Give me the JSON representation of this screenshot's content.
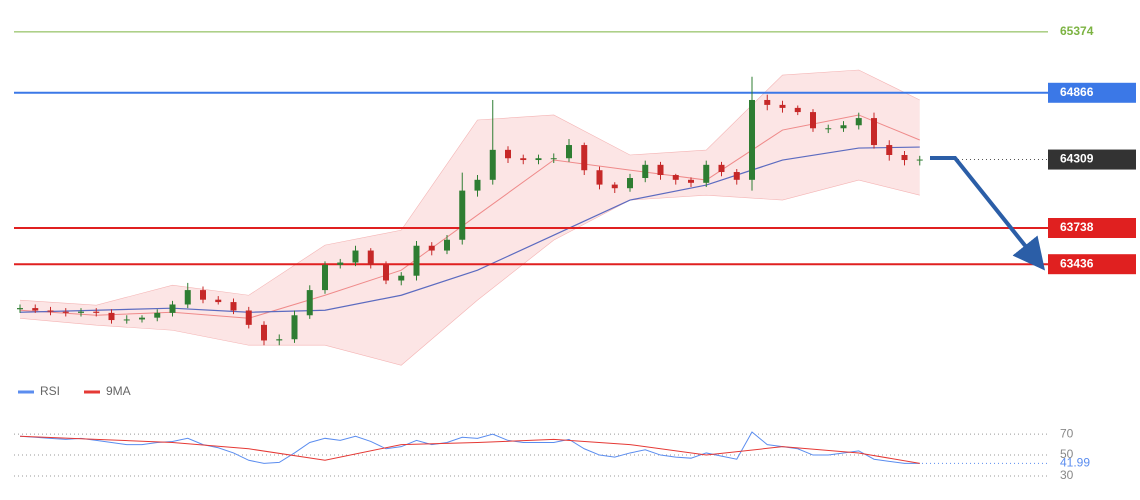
{
  "chart_data": [
    {
      "type": "candlestick",
      "ylim": [
        62470,
        65640
      ],
      "up_color": "#2e7d32",
      "down_color": "#c62828",
      "candles": {
        "open": [
          63060,
          63070,
          63050,
          63040,
          63030,
          63040,
          63030,
          62970,
          62975,
          62990,
          63030,
          63100,
          63220,
          63140,
          63120,
          63050,
          62930,
          62800,
          62810,
          63010,
          63220,
          63430,
          63450,
          63550,
          63430,
          63300,
          63340,
          63590,
          63550,
          63640,
          64050,
          64140,
          64390,
          64320,
          64305,
          64320,
          64320,
          64430,
          64220,
          64100,
          64070,
          64155,
          64265,
          64180,
          64140,
          64115,
          64265,
          64205,
          64140,
          64806,
          64765,
          64740,
          64705,
          64570,
          64570,
          64595,
          64655,
          64430,
          64347,
          64305
        ],
        "high": [
          63100,
          63100,
          63080,
          63070,
          63070,
          63070,
          63060,
          63010,
          63010,
          63060,
          63130,
          63280,
          63250,
          63170,
          63150,
          63080,
          62960,
          62850,
          63050,
          63260,
          63460,
          63480,
          63590,
          63570,
          63460,
          63370,
          63630,
          63620,
          63680,
          64200,
          64180,
          64806,
          64420,
          64350,
          64350,
          64360,
          64480,
          64450,
          64250,
          64120,
          64190,
          64300,
          64290,
          64190,
          64160,
          64300,
          64290,
          64230,
          65000,
          64850,
          64800,
          64760,
          64730,
          64600,
          64630,
          64700,
          64700,
          64470,
          64380,
          64340
        ],
        "low": [
          63030,
          63030,
          63010,
          63000,
          63000,
          63000,
          62940,
          62940,
          62950,
          62960,
          63000,
          63070,
          63110,
          63100,
          63020,
          62900,
          62760,
          62760,
          62780,
          62980,
          63190,
          63400,
          63420,
          63400,
          63270,
          63260,
          63300,
          63510,
          63520,
          63600,
          64000,
          64100,
          64280,
          64270,
          64270,
          64280,
          64290,
          64180,
          64060,
          64030,
          64040,
          64120,
          64140,
          64100,
          64080,
          64080,
          64170,
          64100,
          64050,
          64720,
          64700,
          64680,
          64540,
          64530,
          64540,
          64560,
          64400,
          64300,
          64260,
          64260
        ],
        "close": [
          63070,
          63050,
          63040,
          63030,
          63040,
          63030,
          62970,
          62975,
          62990,
          63030,
          63100,
          63220,
          63140,
          63120,
          63050,
          62930,
          62800,
          62810,
          63010,
          63220,
          63430,
          63450,
          63550,
          63430,
          63300,
          63340,
          63590,
          63550,
          63640,
          64050,
          64140,
          64390,
          64320,
          64305,
          64320,
          64320,
          64430,
          64220,
          64100,
          64070,
          64155,
          64265,
          64180,
          64140,
          64115,
          64265,
          64205,
          64140,
          64806,
          64765,
          64740,
          64705,
          64570,
          64570,
          64595,
          64655,
          64430,
          64347,
          64305,
          64309
        ]
      },
      "indicator_x": [
        0,
        5,
        10,
        15,
        20,
        25,
        30,
        35,
        40,
        45,
        50,
        55,
        59
      ],
      "band_color": "#fbdcdc",
      "band_upper": {
        "color": "#f4b4b4",
        "values": [
          63136,
          63094,
          63261,
          63177,
          63595,
          63720,
          64639,
          64681,
          64347,
          64388,
          65014,
          65056,
          64806
        ]
      },
      "band_lower": {
        "color": "#f4b4b4",
        "values": [
          62985,
          62927,
          62885,
          62760,
          62760,
          62593,
          63136,
          63637,
          63971,
          64012,
          63971,
          64138,
          64012
        ]
      },
      "ma_fast": {
        "color": "#ef8a8a",
        "values": [
          63052,
          63010,
          63035,
          62985,
          63177,
          63386,
          63846,
          64305,
          64221,
          64138,
          64555,
          64681,
          64472
        ]
      },
      "ma_slow": {
        "color": "#5c6bc0",
        "values": [
          63035,
          63052,
          63069,
          63035,
          63052,
          63177,
          63386,
          63678,
          63971,
          64096,
          64305,
          64405,
          64413
        ]
      },
      "levels": [
        {
          "value": 65374,
          "color": "#7cb342",
          "style": "thin"
        },
        {
          "value": 64866,
          "color": "#3b78e7",
          "style": "box"
        },
        {
          "value": 64309,
          "color": "#333333",
          "style": "dotted"
        },
        {
          "value": 63738,
          "color": "#e02020",
          "style": "box"
        },
        {
          "value": 63436,
          "color": "#e02020",
          "style": "box"
        }
      ]
    },
    {
      "type": "line",
      "ylim": [
        7,
        117
      ],
      "yticks": [
        70,
        50,
        30
      ],
      "grid": "dotted",
      "series": [
        {
          "name": "RSI",
          "color": "#5b8def",
          "values": [
            68,
            67,
            66,
            65,
            66,
            64,
            62,
            60,
            60,
            62,
            63,
            66,
            60,
            57,
            52,
            45,
            42,
            43,
            52,
            62,
            66,
            64,
            68,
            63,
            56,
            58,
            64,
            60,
            62,
            67,
            66,
            70,
            64,
            62,
            62,
            62,
            65,
            56,
            50,
            48,
            52,
            55,
            50,
            48,
            47,
            52,
            49,
            46,
            72,
            60,
            58,
            56,
            50,
            50,
            52,
            54,
            46,
            44,
            42,
            41.99
          ]
        },
        {
          "name": "9MA",
          "color": "#e53935",
          "x": [
            0,
            5,
            10,
            15,
            20,
            25,
            30,
            35,
            40,
            45,
            50,
            55,
            59
          ],
          "values": [
            68,
            65,
            62,
            56,
            45,
            60,
            62,
            65,
            60,
            50,
            58,
            52,
            42
          ]
        }
      ]
    }
  ]
}
